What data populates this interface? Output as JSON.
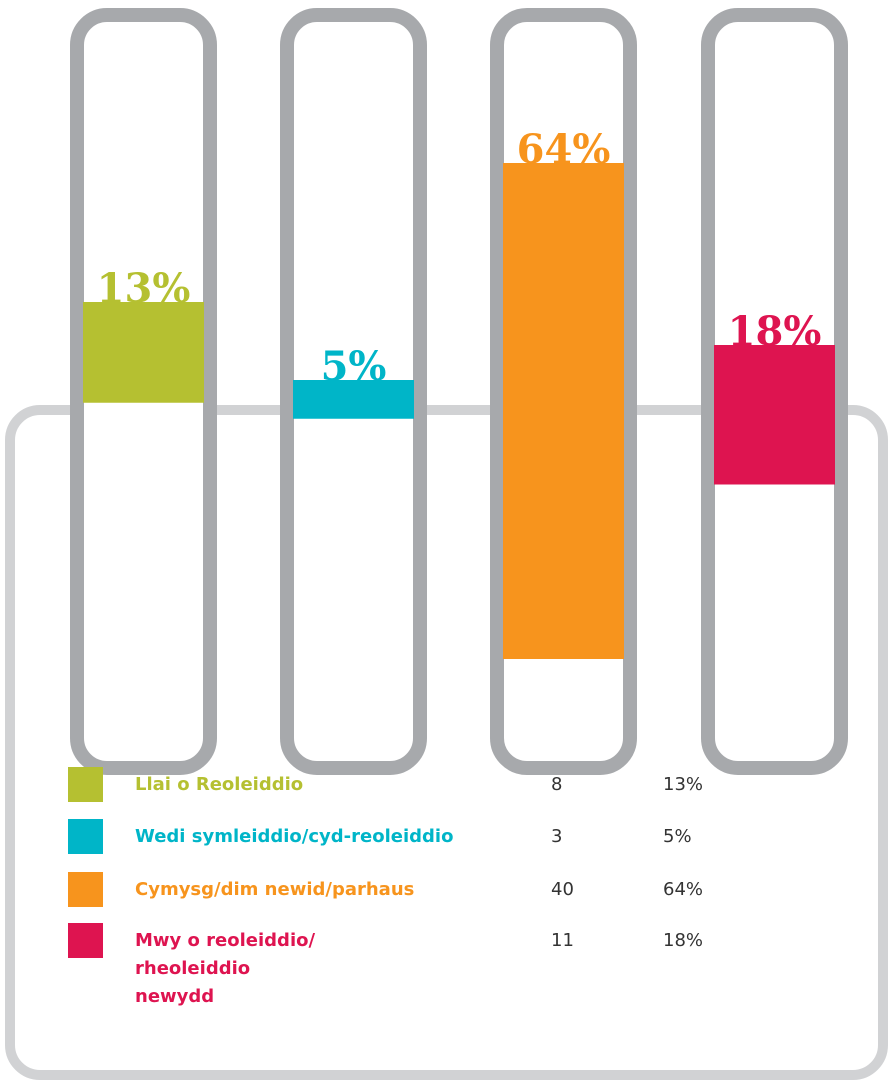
{
  "chart_data": {
    "type": "bar",
    "categories": [
      "Llai o Reoleiddio",
      "Wedi symleiddio/cyd-reoleiddio",
      "Cymysg/dim newid/parhaus",
      "Mwy o reoleiddio/ rheoleiddio newydd"
    ],
    "values": [
      13,
      5,
      64,
      18
    ],
    "value_labels": [
      "13%",
      "5%",
      "64%",
      "18%"
    ],
    "counts": [
      8,
      3,
      40,
      11
    ],
    "colors": [
      "#b5c031",
      "#00b5c8",
      "#f7941d",
      "#de1450"
    ]
  }
}
